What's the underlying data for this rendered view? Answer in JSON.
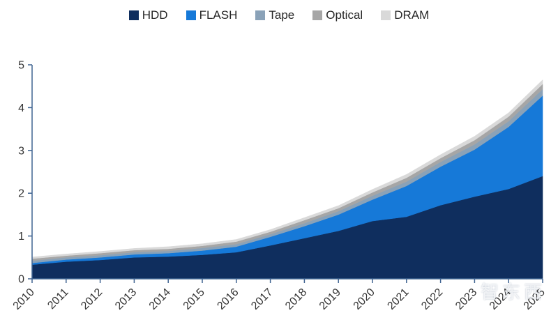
{
  "chart_data": {
    "type": "area",
    "stacked": true,
    "title": "",
    "xlabel": "",
    "ylabel": "",
    "categories": [
      "2010",
      "2011",
      "2012",
      "2013",
      "2014",
      "2015",
      "2016",
      "2017",
      "2018",
      "2019",
      "2020",
      "2021",
      "2022",
      "2023",
      "2024",
      "2025"
    ],
    "series": [
      {
        "name": "HDD",
        "color": "#0f2e5e",
        "values": [
          0.33,
          0.4,
          0.44,
          0.5,
          0.52,
          0.56,
          0.62,
          0.78,
          0.95,
          1.12,
          1.35,
          1.45,
          1.72,
          1.92,
          2.1,
          2.4
        ]
      },
      {
        "name": "FLASH",
        "color": "#1679d8",
        "values": [
          0.04,
          0.05,
          0.06,
          0.07,
          0.08,
          0.1,
          0.13,
          0.2,
          0.28,
          0.38,
          0.5,
          0.72,
          0.9,
          1.1,
          1.45,
          1.88
        ]
      },
      {
        "name": "Tape",
        "color": "#8aa2b8",
        "values": [
          0.05,
          0.05,
          0.05,
          0.05,
          0.05,
          0.06,
          0.06,
          0.06,
          0.07,
          0.08,
          0.09,
          0.1,
          0.11,
          0.12,
          0.13,
          0.15
        ]
      },
      {
        "name": "Optical",
        "color": "#a6a6a6",
        "values": [
          0.05,
          0.04,
          0.05,
          0.05,
          0.05,
          0.05,
          0.06,
          0.06,
          0.07,
          0.07,
          0.08,
          0.09,
          0.09,
          0.1,
          0.11,
          0.12
        ]
      },
      {
        "name": "DRAM",
        "color": "#d9d9d9",
        "values": [
          0.04,
          0.04,
          0.04,
          0.04,
          0.05,
          0.05,
          0.05,
          0.05,
          0.06,
          0.06,
          0.07,
          0.08,
          0.08,
          0.09,
          0.09,
          0.1
        ]
      }
    ],
    "ylim": [
      0,
      5
    ],
    "yticks": [
      0,
      1,
      2,
      3,
      4,
      5
    ],
    "legend_position": "top",
    "grid": false,
    "axis_color": "#3f6391",
    "label_color": "#333333"
  },
  "watermark": {
    "text": "智东西"
  }
}
